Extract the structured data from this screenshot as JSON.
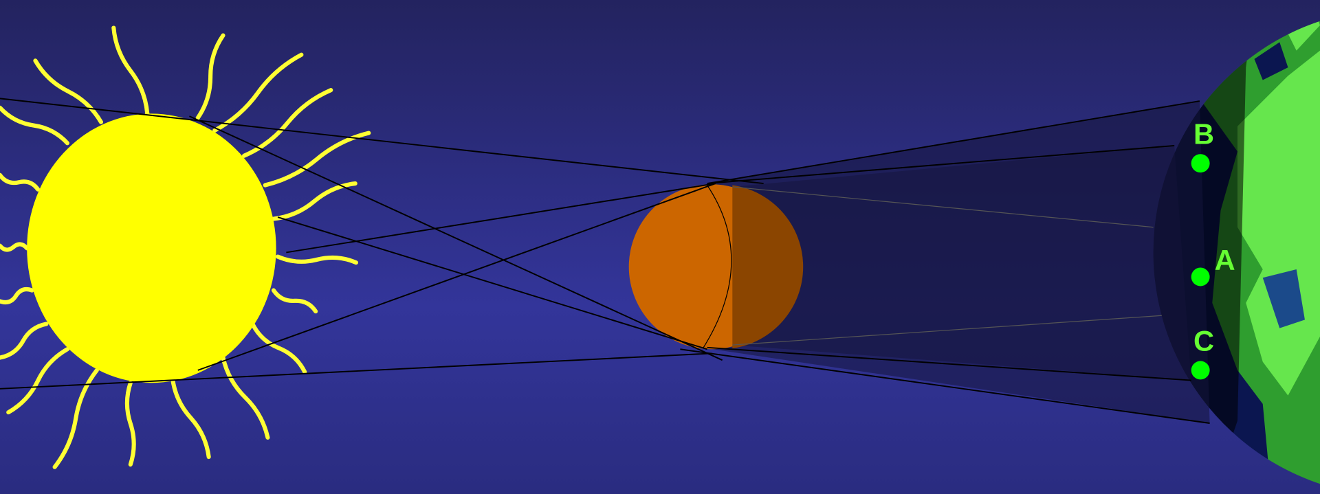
{
  "points": [
    {
      "label": "B"
    },
    {
      "label": "A"
    },
    {
      "label": "C"
    }
  ]
}
